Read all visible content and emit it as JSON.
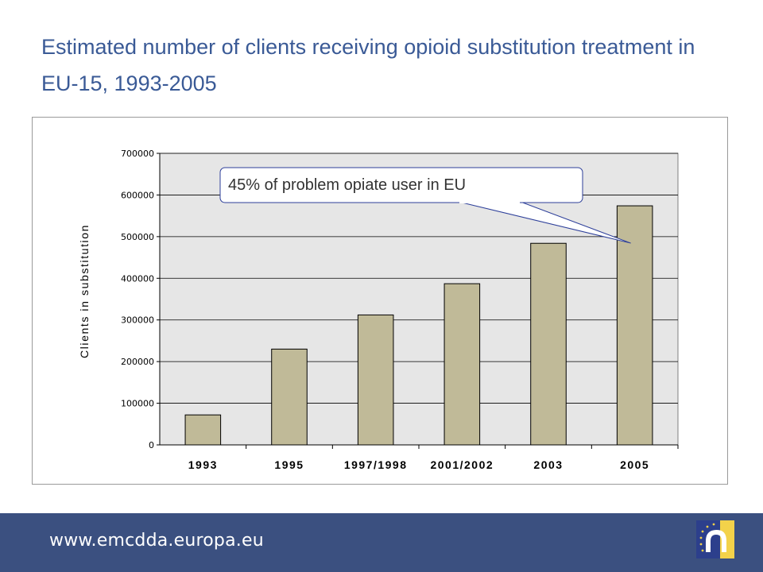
{
  "slide": {
    "title": "Estimated number of clients receiving opioid substitution treatment in EU-15, 1993-2005"
  },
  "footer": {
    "url": "www.emcdda.europa.eu",
    "logo_icon": "emcdda-logo-icon"
  },
  "colors": {
    "title": "#3a5a96",
    "bar_fill": "#c0ba98",
    "plot_bg": "#e6e6e6",
    "footer_bg": "#3b5080",
    "callout_border": "#2d3f9a",
    "logo_blue": "#2c3f8c",
    "logo_yellow": "#f3d24a"
  },
  "chart_data": {
    "type": "bar",
    "categories": [
      "1993",
      "1995",
      "1997/1998",
      "2001/2002",
      "2003",
      "2005"
    ],
    "values": [
      72000,
      230000,
      312000,
      387000,
      484000,
      574000
    ],
    "ylabel": "Clients in substitution",
    "xlabel": "",
    "ylim": [
      0,
      700000
    ],
    "yticks": [
      0,
      100000,
      200000,
      300000,
      400000,
      500000,
      600000,
      700000
    ],
    "grid": true,
    "annotation": {
      "text": "45% of problem opiate user in EU",
      "points_to": "2005"
    }
  }
}
